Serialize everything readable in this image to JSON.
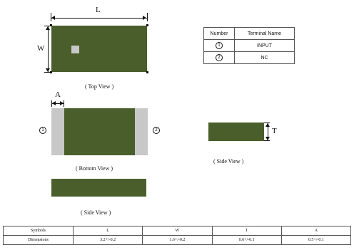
{
  "top_view": {
    "dim_length": "L",
    "dim_width": "W",
    "caption": "( Top View )"
  },
  "bottom_view": {
    "dim_terminal": "A",
    "pin_left": "1",
    "pin_right": "2",
    "caption": "( Bottom View )"
  },
  "side_view_right": {
    "dim_thickness": "T",
    "caption": "( Side View )"
  },
  "side_view_bottom": {
    "caption": "( Side View )"
  },
  "terminal_table": {
    "headers": [
      "Number",
      "Terminal Name"
    ],
    "rows": [
      {
        "number": "1",
        "name": "INPUT"
      },
      {
        "number": "2",
        "name": "NC"
      }
    ]
  },
  "dimensions_table": {
    "headers": [
      "Symbols",
      "L",
      "W",
      "T",
      "A"
    ],
    "row_label": "Dimensions",
    "values": [
      "3.2+/-0.2",
      "1.6+/-0.2",
      "0.6+/-0.1",
      "0.5+/-0.1"
    ]
  },
  "colors": {
    "chip_body": "#4a5e2b",
    "terminal": "#c8c8c8"
  }
}
